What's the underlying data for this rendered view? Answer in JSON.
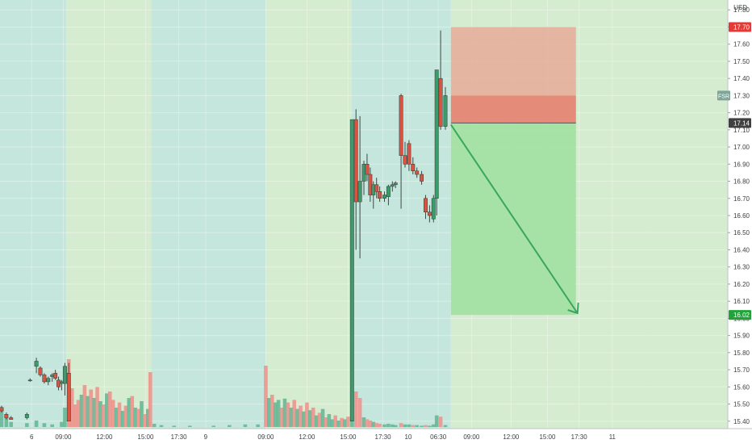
{
  "chart_data": {
    "type": "candlestick",
    "currency": "USD",
    "y_axis": {
      "range": [
        15.38,
        17.82
      ],
      "ticks": [
        "17.80",
        "17.70",
        "17.60",
        "17.50",
        "17.40",
        "17.30",
        "17.20",
        "17.10",
        "17.00",
        "16.90",
        "16.80",
        "16.70",
        "16.60",
        "16.50",
        "16.40",
        "16.30",
        "16.20",
        "16.10",
        "16.00",
        "15.90",
        "15.80",
        "15.70",
        "15.60",
        "15.50",
        "15.40"
      ],
      "tick_values": [
        17.8,
        17.7,
        17.6,
        17.5,
        17.4,
        17.3,
        17.2,
        17.1,
        17.0,
        16.9,
        16.8,
        16.7,
        16.6,
        16.5,
        16.4,
        16.3,
        16.2,
        16.1,
        16.0,
        15.9,
        15.8,
        15.7,
        15.6,
        15.5,
        15.4
      ]
    },
    "x_axis": {
      "range": [
        0,
        46
      ],
      "ticks": [
        {
          "label": "6",
          "t": 2.0
        },
        {
          "label": "09:00",
          "t": 4.0
        },
        {
          "label": "12:00",
          "t": 6.6
        },
        {
          "label": "15:00",
          "t": 9.2
        },
        {
          "label": "17:30",
          "t": 11.3
        },
        {
          "label": "9",
          "t": 13.0
        },
        {
          "label": "09:00",
          "t": 16.8
        },
        {
          "label": "12:00",
          "t": 19.4
        },
        {
          "label": "15:00",
          "t": 22.0
        },
        {
          "label": "17:30",
          "t": 24.2
        },
        {
          "label": "10",
          "t": 25.8
        },
        {
          "label": "06:30",
          "t": 27.7
        },
        {
          "label": "09:00",
          "t": 29.8
        },
        {
          "label": "12:00",
          "t": 32.3
        },
        {
          "label": "15:00",
          "t": 34.6
        },
        {
          "label": "17:30",
          "t": 36.6
        },
        {
          "label": "11",
          "t": 38.7
        }
      ]
    },
    "sessions": [
      {
        "t0": 0.0,
        "t1": 4.2,
        "kind": "ext"
      },
      {
        "t0": 4.2,
        "t1": 9.55,
        "kind": "reg"
      },
      {
        "t0": 9.55,
        "t1": 16.8,
        "kind": "ext"
      },
      {
        "t0": 16.8,
        "t1": 22.2,
        "kind": "reg"
      },
      {
        "t0": 22.2,
        "t1": 28.5,
        "kind": "ext"
      },
      {
        "t0": 28.5,
        "t1": 41.0,
        "kind": "reg"
      }
    ],
    "candles": [
      {
        "t": 0.1,
        "o": 15.48,
        "h": 15.49,
        "l": 15.45,
        "c": 15.46
      },
      {
        "t": 0.4,
        "o": 15.44,
        "h": 15.45,
        "l": 15.41,
        "c": 15.42
      },
      {
        "t": 0.7,
        "o": 15.42,
        "h": 15.43,
        "l": 15.41,
        "c": 15.41
      },
      {
        "t": 1.7,
        "o": 15.42,
        "h": 15.45,
        "l": 15.41,
        "c": 15.44
      },
      {
        "t": 1.9,
        "o": 15.64,
        "h": 15.65,
        "l": 15.63,
        "c": 15.64
      },
      {
        "t": 2.3,
        "o": 15.72,
        "h": 15.77,
        "l": 15.68,
        "c": 15.75
      },
      {
        "t": 2.55,
        "o": 15.71,
        "h": 15.72,
        "l": 15.66,
        "c": 15.67
      },
      {
        "t": 2.8,
        "o": 15.67,
        "h": 15.68,
        "l": 15.62,
        "c": 15.63
      },
      {
        "t": 3.05,
        "o": 15.63,
        "h": 15.66,
        "l": 15.61,
        "c": 15.65
      },
      {
        "t": 3.3,
        "o": 15.66,
        "h": 15.68,
        "l": 15.63,
        "c": 15.67
      },
      {
        "t": 3.5,
        "o": 15.68,
        "h": 15.7,
        "l": 15.64,
        "c": 15.65
      },
      {
        "t": 3.7,
        "o": 15.64,
        "h": 15.66,
        "l": 15.58,
        "c": 15.6
      },
      {
        "t": 3.9,
        "o": 15.62,
        "h": 15.64,
        "l": 15.58,
        "c": 15.63
      },
      {
        "t": 4.1,
        "o": 15.62,
        "h": 15.74,
        "l": 15.55,
        "c": 15.72
      },
      {
        "t": 4.35,
        "o": 15.68,
        "h": 15.74,
        "l": 15.4,
        "c": 15.4
      },
      {
        "t": 22.25,
        "o": 15.4,
        "h": 17.16,
        "l": 15.4,
        "c": 17.16
      },
      {
        "t": 22.5,
        "o": 17.16,
        "h": 17.22,
        "l": 16.4,
        "c": 16.68
      },
      {
        "t": 22.75,
        "o": 16.68,
        "h": 17.18,
        "l": 16.35,
        "c": 16.8
      },
      {
        "t": 23.0,
        "o": 16.8,
        "h": 16.92,
        "l": 16.72,
        "c": 16.9
      },
      {
        "t": 23.2,
        "o": 16.9,
        "h": 16.96,
        "l": 16.8,
        "c": 16.84
      },
      {
        "t": 23.4,
        "o": 16.84,
        "h": 16.88,
        "l": 16.68,
        "c": 16.72
      },
      {
        "t": 23.6,
        "o": 16.72,
        "h": 16.8,
        "l": 16.64,
        "c": 16.78
      },
      {
        "t": 23.8,
        "o": 16.78,
        "h": 16.82,
        "l": 16.7,
        "c": 16.74
      },
      {
        "t": 24.0,
        "o": 16.74,
        "h": 16.77,
        "l": 16.68,
        "c": 16.7
      },
      {
        "t": 24.3,
        "o": 16.7,
        "h": 16.74,
        "l": 16.68,
        "c": 16.72
      },
      {
        "t": 24.55,
        "o": 16.71,
        "h": 16.78,
        "l": 16.66,
        "c": 16.77
      },
      {
        "t": 24.8,
        "o": 16.77,
        "h": 16.8,
        "l": 16.74,
        "c": 16.78
      },
      {
        "t": 25.0,
        "o": 16.78,
        "h": 16.8,
        "l": 16.76,
        "c": 16.79
      },
      {
        "t": 25.35,
        "o": 17.3,
        "h": 17.31,
        "l": 16.64,
        "c": 16.95
      },
      {
        "t": 25.6,
        "o": 16.95,
        "h": 17.03,
        "l": 16.88,
        "c": 16.9
      },
      {
        "t": 25.85,
        "o": 17.02,
        "h": 17.04,
        "l": 16.86,
        "c": 16.9
      },
      {
        "t": 26.1,
        "o": 16.9,
        "h": 16.94,
        "l": 16.84,
        "c": 16.86
      },
      {
        "t": 26.35,
        "o": 16.86,
        "h": 16.88,
        "l": 16.82,
        "c": 16.84
      },
      {
        "t": 26.65,
        "o": 16.84,
        "h": 16.86,
        "l": 16.78,
        "c": 16.8
      },
      {
        "t": 26.9,
        "o": 16.7,
        "h": 16.72,
        "l": 16.58,
        "c": 16.62
      },
      {
        "t": 27.15,
        "o": 16.62,
        "h": 16.66,
        "l": 16.56,
        "c": 16.6
      },
      {
        "t": 27.4,
        "o": 16.58,
        "h": 16.72,
        "l": 16.56,
        "c": 16.7
      },
      {
        "t": 27.6,
        "o": 16.7,
        "h": 17.45,
        "l": 16.6,
        "c": 17.45
      },
      {
        "t": 27.85,
        "o": 17.4,
        "h": 17.68,
        "l": 17.1,
        "c": 17.12
      },
      {
        "t": 28.15,
        "o": 17.12,
        "h": 17.35,
        "l": 17.1,
        "c": 17.3
      }
    ],
    "volumes": [
      {
        "t": 0.1,
        "v": 28,
        "dir": "up"
      },
      {
        "t": 0.4,
        "v": 14,
        "dir": "up"
      },
      {
        "t": 0.7,
        "v": 8,
        "dir": "up"
      },
      {
        "t": 1.7,
        "v": 6,
        "dir": "up"
      },
      {
        "t": 2.3,
        "v": 10,
        "dir": "up"
      },
      {
        "t": 2.8,
        "v": 6,
        "dir": "up"
      },
      {
        "t": 3.3,
        "v": 4,
        "dir": "up"
      },
      {
        "t": 3.9,
        "v": 8,
        "dir": "up"
      },
      {
        "t": 4.1,
        "v": 30,
        "dir": "up"
      },
      {
        "t": 4.35,
        "v": 105,
        "dir": "down"
      },
      {
        "t": 4.55,
        "v": 60,
        "dir": "down"
      },
      {
        "t": 4.75,
        "v": 35,
        "dir": "down"
      },
      {
        "t": 4.95,
        "v": 42,
        "dir": "down"
      },
      {
        "t": 5.15,
        "v": 50,
        "dir": "up"
      },
      {
        "t": 5.35,
        "v": 65,
        "dir": "down"
      },
      {
        "t": 5.55,
        "v": 48,
        "dir": "up"
      },
      {
        "t": 5.75,
        "v": 58,
        "dir": "down"
      },
      {
        "t": 5.95,
        "v": 45,
        "dir": "up"
      },
      {
        "t": 6.15,
        "v": 62,
        "dir": "down"
      },
      {
        "t": 6.35,
        "v": 40,
        "dir": "up"
      },
      {
        "t": 6.55,
        "v": 35,
        "dir": "down"
      },
      {
        "t": 6.75,
        "v": 52,
        "dir": "up"
      },
      {
        "t": 6.95,
        "v": 55,
        "dir": "down"
      },
      {
        "t": 7.15,
        "v": 42,
        "dir": "down"
      },
      {
        "t": 7.35,
        "v": 30,
        "dir": "up"
      },
      {
        "t": 7.55,
        "v": 38,
        "dir": "down"
      },
      {
        "t": 7.75,
        "v": 25,
        "dir": "up"
      },
      {
        "t": 7.95,
        "v": 33,
        "dir": "down"
      },
      {
        "t": 8.15,
        "v": 45,
        "dir": "up"
      },
      {
        "t": 8.35,
        "v": 48,
        "dir": "down"
      },
      {
        "t": 8.55,
        "v": 30,
        "dir": "up"
      },
      {
        "t": 8.75,
        "v": 28,
        "dir": "down"
      },
      {
        "t": 8.95,
        "v": 40,
        "dir": "up"
      },
      {
        "t": 9.15,
        "v": 20,
        "dir": "down"
      },
      {
        "t": 9.35,
        "v": 28,
        "dir": "up"
      },
      {
        "t": 9.5,
        "v": 85,
        "dir": "down"
      },
      {
        "t": 9.75,
        "v": 5,
        "dir": "up"
      },
      {
        "t": 10.2,
        "v": 3,
        "dir": "up"
      },
      {
        "t": 11.0,
        "v": 2,
        "dir": "up"
      },
      {
        "t": 12.0,
        "v": 2,
        "dir": "up"
      },
      {
        "t": 13.5,
        "v": 2,
        "dir": "up"
      },
      {
        "t": 14.5,
        "v": 3,
        "dir": "up"
      },
      {
        "t": 15.5,
        "v": 4,
        "dir": "up"
      },
      {
        "t": 16.3,
        "v": 4,
        "dir": "up"
      },
      {
        "t": 16.8,
        "v": 95,
        "dir": "down"
      },
      {
        "t": 17.0,
        "v": 45,
        "dir": "up"
      },
      {
        "t": 17.2,
        "v": 50,
        "dir": "down"
      },
      {
        "t": 17.4,
        "v": 38,
        "dir": "up"
      },
      {
        "t": 17.6,
        "v": 42,
        "dir": "up"
      },
      {
        "t": 17.8,
        "v": 30,
        "dir": "down"
      },
      {
        "t": 18.0,
        "v": 44,
        "dir": "up"
      },
      {
        "t": 18.2,
        "v": 38,
        "dir": "down"
      },
      {
        "t": 18.4,
        "v": 30,
        "dir": "up"
      },
      {
        "t": 18.6,
        "v": 42,
        "dir": "down"
      },
      {
        "t": 18.8,
        "v": 28,
        "dir": "up"
      },
      {
        "t": 19.0,
        "v": 33,
        "dir": "down"
      },
      {
        "t": 19.2,
        "v": 24,
        "dir": "up"
      },
      {
        "t": 19.4,
        "v": 38,
        "dir": "down"
      },
      {
        "t": 19.6,
        "v": 26,
        "dir": "up"
      },
      {
        "t": 19.8,
        "v": 30,
        "dir": "down"
      },
      {
        "t": 20.0,
        "v": 18,
        "dir": "up"
      },
      {
        "t": 20.2,
        "v": 22,
        "dir": "down"
      },
      {
        "t": 20.4,
        "v": 28,
        "dir": "up"
      },
      {
        "t": 20.6,
        "v": 15,
        "dir": "down"
      },
      {
        "t": 20.8,
        "v": 20,
        "dir": "up"
      },
      {
        "t": 21.0,
        "v": 12,
        "dir": "up"
      },
      {
        "t": 21.2,
        "v": 18,
        "dir": "down"
      },
      {
        "t": 21.4,
        "v": 10,
        "dir": "up"
      },
      {
        "t": 21.6,
        "v": 14,
        "dir": "down"
      },
      {
        "t": 21.8,
        "v": 12,
        "dir": "up"
      },
      {
        "t": 22.0,
        "v": 16,
        "dir": "down"
      },
      {
        "t": 22.25,
        "v": 48,
        "dir": "up"
      },
      {
        "t": 22.5,
        "v": 55,
        "dir": "down"
      },
      {
        "t": 22.75,
        "v": 45,
        "dir": "down"
      },
      {
        "t": 23.0,
        "v": 15,
        "dir": "up"
      },
      {
        "t": 23.2,
        "v": 12,
        "dir": "down"
      },
      {
        "t": 23.4,
        "v": 10,
        "dir": "down"
      },
      {
        "t": 23.6,
        "v": 8,
        "dir": "up"
      },
      {
        "t": 23.8,
        "v": 6,
        "dir": "down"
      },
      {
        "t": 24.0,
        "v": 5,
        "dir": "down"
      },
      {
        "t": 24.3,
        "v": 4,
        "dir": "up"
      },
      {
        "t": 24.55,
        "v": 5,
        "dir": "up"
      },
      {
        "t": 24.8,
        "v": 4,
        "dir": "up"
      },
      {
        "t": 25.0,
        "v": 3,
        "dir": "up"
      },
      {
        "t": 25.35,
        "v": 6,
        "dir": "down"
      },
      {
        "t": 25.6,
        "v": 4,
        "dir": "up"
      },
      {
        "t": 25.85,
        "v": 4,
        "dir": "up"
      },
      {
        "t": 26.1,
        "v": 3,
        "dir": "down"
      },
      {
        "t": 26.35,
        "v": 3,
        "dir": "up"
      },
      {
        "t": 26.65,
        "v": 2,
        "dir": "up"
      },
      {
        "t": 26.9,
        "v": 3,
        "dir": "down"
      },
      {
        "t": 27.15,
        "v": 2,
        "dir": "up"
      },
      {
        "t": 27.4,
        "v": 4,
        "dir": "up"
      },
      {
        "t": 27.6,
        "v": 18,
        "dir": "up"
      },
      {
        "t": 27.85,
        "v": 16,
        "dir": "down"
      },
      {
        "t": 28.15,
        "v": 3,
        "dir": "up"
      }
    ],
    "position": {
      "type": "short",
      "entry": 17.14,
      "stop": 17.7,
      "target": 16.02,
      "inner_stop": 17.3,
      "t0": 28.5,
      "t1": 36.4,
      "arrow": {
        "from_t": 28.5,
        "from_p": 17.13,
        "to_t": 36.5,
        "to_p": 16.03
      }
    },
    "price_labels": [
      {
        "text": "17.70",
        "value": 17.7,
        "kind": "stop"
      },
      {
        "text": "17.14",
        "value": 17.14,
        "kind": "last"
      },
      {
        "text": "16.02",
        "value": 16.02,
        "kind": "target"
      }
    ],
    "symbol_tag": {
      "text": "FSR",
      "value": 17.3
    },
    "colors": {
      "ext_bg": "#c5e6dc",
      "reg_bg": "#d6ecd0",
      "up": "#3d9a6a",
      "down": "#d75442",
      "vol_up": "#5fb593",
      "vol_down": "#ef8f89",
      "stop_zone": "#e8a391",
      "stop_zone_inner": "#e4826f",
      "target_zone": "#9ddf9d",
      "arrow": "#3aa660",
      "grid": "#e4efe9",
      "axis_text": "#3c4043",
      "stop_label": "#e53935",
      "last_label": "#404040",
      "target_label": "#21a33a"
    }
  }
}
